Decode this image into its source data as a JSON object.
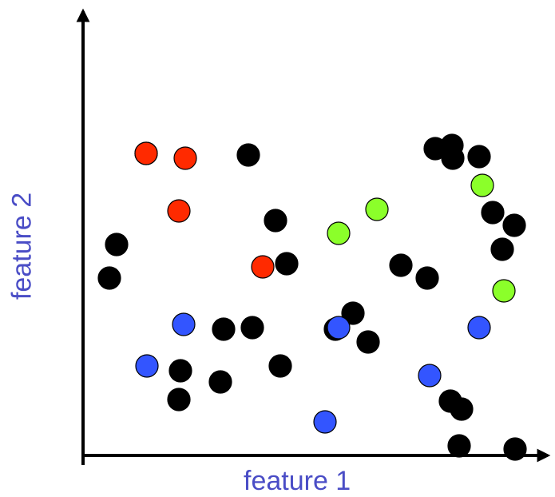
{
  "chart_data": {
    "type": "scatter",
    "xlabel": "feature 1",
    "ylabel": "feature 2",
    "grid": false,
    "legend": "none",
    "series": [
      {
        "color": "#000000",
        "points": [
          {
            "x": 33,
            "y": 111
          },
          {
            "x": 212,
            "y": 80
          },
          {
            "x": 316,
            "y": 79
          },
          {
            "x": 357,
            "y": 71
          },
          {
            "x": 441,
            "y": 192
          },
          {
            "x": 525,
            "y": 129
          },
          {
            "x": 540,
            "y": 144
          },
          {
            "x": 172,
            "y": 46
          },
          {
            "x": 42,
            "y": 132
          },
          {
            "x": 79,
            "y": 189
          },
          {
            "x": 207,
            "y": 188
          },
          {
            "x": 241,
            "y": 147
          },
          {
            "x": 247,
            "y": 56
          },
          {
            "x": 255,
            "y": 120
          },
          {
            "x": 338,
            "y": 89
          },
          {
            "x": 474,
            "y": 29
          },
          {
            "x": 398,
            "y": 119
          },
          {
            "x": 122,
            "y": 53
          },
          {
            "x": 176,
            "y": 79
          },
          {
            "x": 463,
            "y": 186
          },
          {
            "x": 120,
            "y": 35
          },
          {
            "x": 460,
            "y": 34
          },
          {
            "x": 496,
            "y": 187
          },
          {
            "x": 513,
            "y": 152
          },
          {
            "x": 541,
            "y": 4
          },
          {
            "x": 431,
            "y": 111
          },
          {
            "x": 471,
            "y": 6
          },
          {
            "x": 462,
            "y": 194
          }
        ]
      },
      {
        "color": "#ff2a00",
        "points": [
          {
            "x": 79,
            "y": 189
          },
          {
            "x": 128,
            "y": 186
          },
          {
            "x": 120,
            "y": 153
          },
          {
            "x": 225,
            "y": 118
          }
        ]
      },
      {
        "color": "#3355ff",
        "points": [
          {
            "x": 126,
            "y": 82
          },
          {
            "x": 80,
            "y": 56
          },
          {
            "x": 320,
            "y": 80
          },
          {
            "x": 496,
            "y": 80
          },
          {
            "x": 434,
            "y": 50
          },
          {
            "x": 303,
            "y": 21
          }
        ]
      },
      {
        "color": "#8bff2a",
        "points": [
          {
            "x": 500,
            "y": 169
          },
          {
            "x": 368,
            "y": 154
          },
          {
            "x": 320,
            "y": 139
          },
          {
            "x": 527,
            "y": 103
          }
        ]
      }
    ]
  }
}
